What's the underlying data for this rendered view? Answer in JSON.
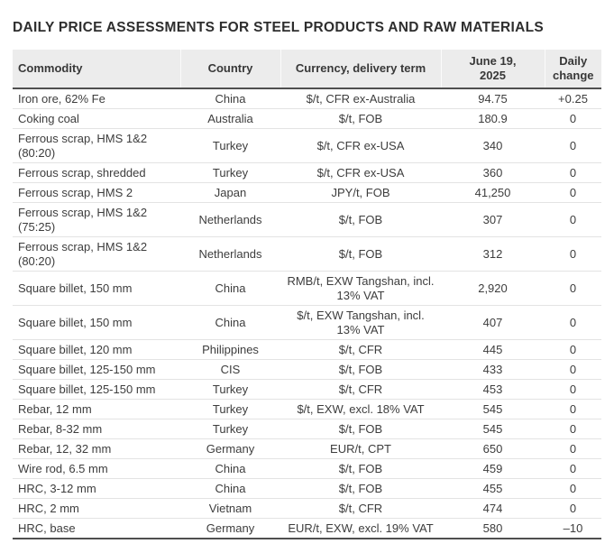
{
  "page": {
    "title": "DAILY PRICE ASSESSMENTS FOR STEEL PRODUCTS AND RAW MATERIALS"
  },
  "colors": {
    "header_background": "#ececec",
    "body_text": "#3d3d3d",
    "heavy_rule": "#4f4f4f",
    "row_separator": "#e3e3e3"
  },
  "table": {
    "columns": [
      {
        "key": "commodity",
        "label": "Commodity"
      },
      {
        "key": "country",
        "label": "Country"
      },
      {
        "key": "currency",
        "label": "Currency, delivery term"
      },
      {
        "key": "price",
        "label": "June 19,\n2025"
      },
      {
        "key": "change",
        "label": "Daily\nchange"
      }
    ],
    "rows": [
      {
        "commodity": "Iron ore, 62% Fe",
        "country": "China",
        "currency": "$/t, CFR ex-Australia",
        "price": "94.75",
        "change": "+0.25"
      },
      {
        "commodity": "Coking coal",
        "country": "Australia",
        "currency": "$/t, FOB",
        "price": "180.9",
        "change": "0"
      },
      {
        "commodity": "Ferrous scrap, HMS 1&2 (80:20)",
        "country": "Turkey",
        "currency": "$/t, CFR ex-USA",
        "price": "340",
        "change": "0"
      },
      {
        "commodity": "Ferrous scrap, shredded",
        "country": "Turkey",
        "currency": "$/t, CFR ex-USA",
        "price": "360",
        "change": "0"
      },
      {
        "commodity": "Ferrous scrap, HMS 2",
        "country": "Japan",
        "currency": "JPY/t, FOB",
        "price": "41,250",
        "change": "0"
      },
      {
        "commodity": "Ferrous scrap, HMS 1&2 (75:25)",
        "country": "Netherlands",
        "currency": "$/t, FOB",
        "price": "307",
        "change": "0"
      },
      {
        "commodity": "Ferrous scrap, HMS 1&2 (80:20)",
        "country": "Netherlands",
        "currency": "$/t, FOB",
        "price": "312",
        "change": "0"
      },
      {
        "commodity": "Square billet, 150 mm",
        "country": "China",
        "currency": "RMB/t, EXW Tangshan, incl. 13% VAT",
        "price": "2,920",
        "change": "0"
      },
      {
        "commodity": "Square billet, 150 mm",
        "country": "China",
        "currency": "$/t, EXW Tangshan, incl. 13% VAT",
        "price": "407",
        "change": "0"
      },
      {
        "commodity": "Square billet, 120 mm",
        "country": "Philippines",
        "currency": "$/t, CFR",
        "price": "445",
        "change": "0"
      },
      {
        "commodity": "Square billet, 125-150 mm",
        "country": "CIS",
        "currency": "$/t, FOB",
        "price": "433",
        "change": "0"
      },
      {
        "commodity": "Square billet, 125-150 mm",
        "country": "Turkey",
        "currency": "$/t, CFR",
        "price": "453",
        "change": "0"
      },
      {
        "commodity": "Rebar, 12 mm",
        "country": "Turkey",
        "currency": "$/t, EXW, excl. 18% VAT",
        "price": "545",
        "change": "0"
      },
      {
        "commodity": "Rebar, 8-32 mm",
        "country": "Turkey",
        "currency": "$/t, FOB",
        "price": "545",
        "change": "0"
      },
      {
        "commodity": "Rebar, 12, 32 mm",
        "country": "Germany",
        "currency": "EUR/t, CPT",
        "price": "650",
        "change": "0"
      },
      {
        "commodity": "Wire rod, 6.5 mm",
        "country": "China",
        "currency": "$/t, FOB",
        "price": "459",
        "change": "0"
      },
      {
        "commodity": "HRC, 3-12 mm",
        "country": "China",
        "currency": "$/t, FOB",
        "price": "455",
        "change": "0"
      },
      {
        "commodity": "HRC, 2 mm",
        "country": "Vietnam",
        "currency": "$/t, CFR",
        "price": "474",
        "change": "0"
      },
      {
        "commodity": "HRC, base",
        "country": "Germany",
        "currency": "EUR/t, EXW, excl. 19% VAT",
        "price": "580",
        "change": "–10"
      }
    ]
  }
}
